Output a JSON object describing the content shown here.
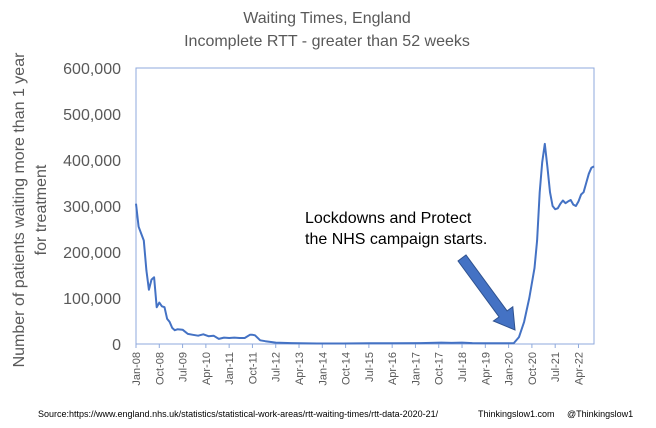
{
  "chart_data": {
    "type": "line",
    "title": [
      "Waiting Times, England",
      "Incomplete RTT - greater than 52 weeks"
    ],
    "ylabel": [
      "Number of patients waiting more than 1 year",
      "for treatment"
    ],
    "xlabel": "",
    "ylim": [
      0,
      600000
    ],
    "y_ticks": [
      0,
      100000,
      200000,
      300000,
      400000,
      500000,
      600000
    ],
    "y_tick_labels": [
      "0",
      "100,000",
      "200,000",
      "300,000",
      "400,000",
      "500,000",
      "600,000"
    ],
    "x_tick_labels": [
      "Jan-08",
      "Oct-08",
      "Jul-09",
      "Apr-10",
      "Jan-11",
      "Oct-11",
      "Jul-12",
      "Apr-13",
      "Jan-14",
      "Oct-14",
      "Jul-15",
      "Apr-16",
      "Jan-17",
      "Oct-17",
      "Jul-18",
      "Apr-19",
      "Jan-20",
      "Oct-20",
      "Jul-21",
      "Apr-22"
    ],
    "x_tick_month_index": [
      0,
      9,
      18,
      27,
      36,
      45,
      54,
      63,
      72,
      81,
      90,
      99,
      108,
      117,
      126,
      135,
      144,
      153,
      162,
      171
    ],
    "x_month_range": [
      0,
      177
    ],
    "grid": false,
    "line_color": "#4472C4",
    "series": [
      {
        "name": "Incomplete RTT > 52 weeks",
        "x": [
          0,
          1,
          2,
          3,
          4,
          5,
          6,
          7,
          8,
          9,
          10,
          11,
          12,
          13,
          14,
          15,
          16,
          18,
          20,
          22,
          24,
          26,
          28,
          30,
          32,
          34,
          36,
          38,
          40,
          42,
          44,
          45,
          46,
          48,
          50,
          54,
          60,
          70,
          80,
          90,
          100,
          110,
          118,
          122,
          126,
          130,
          135,
          140,
          144,
          146,
          148,
          150,
          152,
          154,
          155,
          156,
          157,
          158,
          159,
          160,
          161,
          162,
          163,
          164,
          165,
          166,
          167,
          168,
          169,
          170,
          171,
          172,
          173,
          174,
          175,
          176,
          177
        ],
        "values": [
          305000,
          255000,
          240000,
          225000,
          160000,
          118000,
          140000,
          145000,
          80000,
          90000,
          82000,
          80000,
          55000,
          48000,
          35000,
          30000,
          32000,
          31000,
          22000,
          20000,
          18000,
          21000,
          17000,
          18000,
          11000,
          14000,
          13000,
          14000,
          13000,
          13000,
          20000,
          20000,
          19000,
          8000,
          6000,
          3000,
          2000,
          1000,
          1000,
          1500,
          1500,
          2000,
          3000,
          2500,
          3000,
          2000,
          1500,
          1500,
          1500,
          2000,
          15000,
          48000,
          100000,
          165000,
          225000,
          330000,
          395000,
          435000,
          385000,
          330000,
          300000,
          293000,
          295000,
          305000,
          312000,
          306000,
          310000,
          313000,
          303000,
          300000,
          310000,
          325000,
          330000,
          350000,
          370000,
          383000,
          386000
        ]
      }
    ],
    "annotations": [
      {
        "text": [
          "Lockdowns and Protect",
          "the NHS campaign starts."
        ],
        "arrow_to_month": 148
      }
    ]
  },
  "footer": {
    "source": "Source:https://www.england.nhs.uk/statistics/statistical-work-areas/rtt-waiting-times/rtt-data-2020-21/",
    "site": "Thinkingslow1.com",
    "handle": "@Thinkingslow1"
  }
}
